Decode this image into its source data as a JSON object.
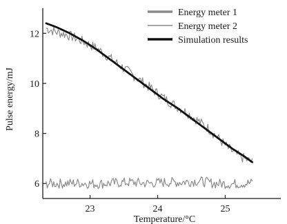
{
  "chart_data": {
    "type": "line",
    "title": "",
    "xlabel": "Temperature/°C",
    "ylabel": "Pulse energy/mJ",
    "xlim": [
      22.3,
      25.7
    ],
    "ylim": [
      5.4,
      13.0
    ],
    "xticks": [
      23,
      24,
      25
    ],
    "yticks": [
      6,
      8,
      10,
      12
    ],
    "grid": false,
    "legend_position": "top-right",
    "series": [
      {
        "name": "Energy meter 1",
        "color": "#8a8a8a",
        "style": "noisy",
        "x": [
          22.35,
          22.5,
          22.65,
          22.8,
          22.95,
          23.1,
          23.25,
          23.4,
          23.55,
          23.7,
          23.85,
          24.0,
          24.15,
          24.3,
          24.45,
          24.6,
          24.75,
          24.9,
          25.05,
          25.2,
          25.4
        ],
        "y": [
          12.2,
          12.05,
          11.95,
          11.8,
          11.6,
          11.4,
          11.1,
          10.8,
          10.5,
          10.2,
          9.9,
          9.6,
          9.3,
          9.05,
          8.8,
          8.5,
          8.2,
          7.8,
          7.4,
          7.1,
          6.85
        ]
      },
      {
        "name": "Energy meter 2",
        "color": "#8a8a8a",
        "style": "noisy",
        "x": [
          22.35,
          22.6,
          22.85,
          23.1,
          23.35,
          23.6,
          23.85,
          24.1,
          24.35,
          24.6,
          24.85,
          25.1,
          25.4
        ],
        "y": [
          6.0,
          6.0,
          6.02,
          5.98,
          6.02,
          6.05,
          6.0,
          6.05,
          6.05,
          6.1,
          6.0,
          5.98,
          6.02
        ]
      },
      {
        "name": "Simulation results",
        "color": "#111111",
        "style": "smooth",
        "x": [
          22.35,
          22.5,
          22.7,
          22.9,
          23.1,
          23.3,
          23.5,
          23.7,
          23.9,
          24.1,
          24.3,
          24.5,
          24.7,
          24.9,
          25.1,
          25.3,
          25.4
        ],
        "y": [
          12.4,
          12.25,
          12.0,
          11.7,
          11.35,
          10.95,
          10.55,
          10.15,
          9.75,
          9.35,
          9.0,
          8.6,
          8.2,
          7.8,
          7.4,
          7.05,
          6.85
        ]
      }
    ]
  }
}
